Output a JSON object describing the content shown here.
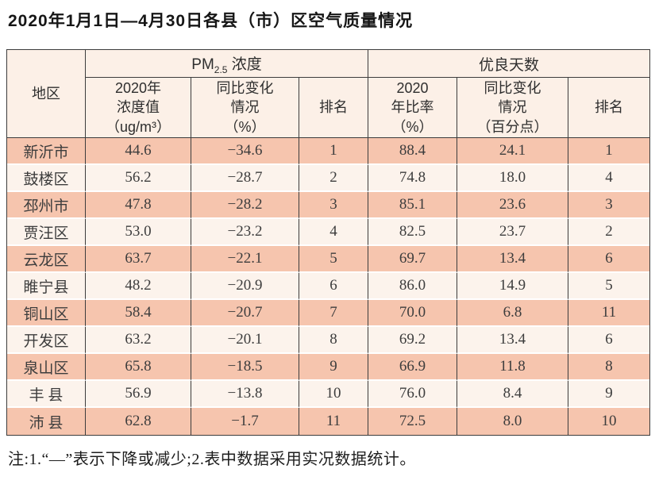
{
  "page": {
    "title": "2020年1月1日—4月30日各县（市）区空气质量情况",
    "footnote": "注:1.“—”表示下降或减少;2.表中数据采用实况数据统计。"
  },
  "colors": {
    "row_salmon": "#f6c5ae",
    "row_light": "#fcf3ec",
    "header_bg": "#fcf0e7",
    "grid_line": "#3c3c3c"
  },
  "table": {
    "header": {
      "region": "地区",
      "pm_group": {
        "prefix": "PM",
        "sub": "2.5",
        "suffix": " 浓度"
      },
      "good_group": "优良天数",
      "pm_value": "2020年\n浓度值\n（ug/m³）",
      "pm_change": "同比变化\n情况\n（%）",
      "pm_rank": "排名",
      "good_rate": "2020\n年比率\n（%）",
      "good_change": "同比变化\n情况\n（百分点）",
      "good_rank": "排名"
    },
    "rows": [
      {
        "region": "新沂市",
        "pm_value": "44.6",
        "pm_change": "−34.6",
        "pm_rank": "1",
        "good_rate": "88.4",
        "good_change": "24.1",
        "good_rank": "1"
      },
      {
        "region": "鼓楼区",
        "pm_value": "56.2",
        "pm_change": "−28.7",
        "pm_rank": "2",
        "good_rate": "74.8",
        "good_change": "18.0",
        "good_rank": "4"
      },
      {
        "region": "邳州市",
        "pm_value": "47.8",
        "pm_change": "−28.2",
        "pm_rank": "3",
        "good_rate": "85.1",
        "good_change": "23.6",
        "good_rank": "3"
      },
      {
        "region": "贾汪区",
        "pm_value": "53.0",
        "pm_change": "−23.2",
        "pm_rank": "4",
        "good_rate": "82.5",
        "good_change": "23.7",
        "good_rank": "2"
      },
      {
        "region": "云龙区",
        "pm_value": "63.7",
        "pm_change": "−22.1",
        "pm_rank": "5",
        "good_rate": "69.7",
        "good_change": "13.4",
        "good_rank": "6"
      },
      {
        "region": "睢宁县",
        "pm_value": "48.2",
        "pm_change": "−20.9",
        "pm_rank": "6",
        "good_rate": "86.0",
        "good_change": "14.9",
        "good_rank": "5"
      },
      {
        "region": "铜山区",
        "pm_value": "58.4",
        "pm_change": "−20.7",
        "pm_rank": "7",
        "good_rate": "70.0",
        "good_change": "6.8",
        "good_rank": "11"
      },
      {
        "region": "开发区",
        "pm_value": "63.2",
        "pm_change": "−20.1",
        "pm_rank": "8",
        "good_rate": "69.2",
        "good_change": "13.4",
        "good_rank": "6"
      },
      {
        "region": "泉山区",
        "pm_value": "65.8",
        "pm_change": "−18.5",
        "pm_rank": "9",
        "good_rate": "66.9",
        "good_change": "11.8",
        "good_rank": "8"
      },
      {
        "region": "丰 县",
        "pm_value": "56.9",
        "pm_change": "−13.8",
        "pm_rank": "10",
        "good_rate": "76.0",
        "good_change": "8.4",
        "good_rank": "9"
      },
      {
        "region": "沛 县",
        "pm_value": "62.8",
        "pm_change": "−1.7",
        "pm_rank": "11",
        "good_rate": "72.5",
        "good_change": "8.0",
        "good_rank": "10"
      }
    ]
  }
}
